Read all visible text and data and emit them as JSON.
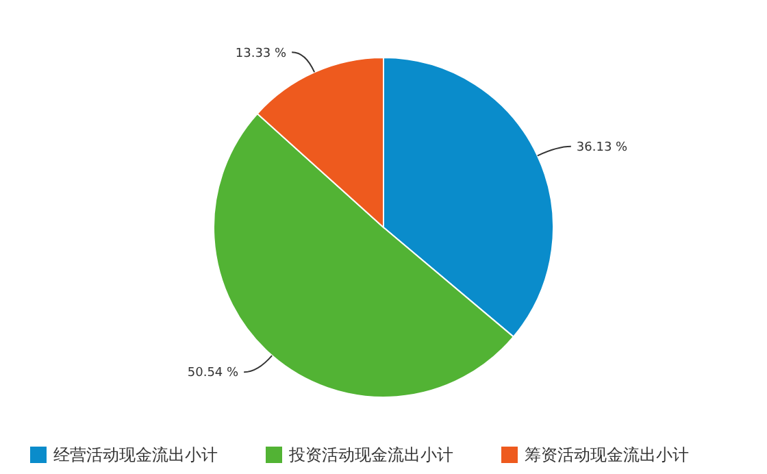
{
  "chart_data": {
    "type": "pie",
    "categories": [
      "经营活动现金流出小计",
      "投资活动现金流出小计",
      "筹资活动现金流出小计"
    ],
    "values": [
      36.13,
      50.54,
      13.33
    ],
    "colors": [
      "#0a8ccb",
      "#52b334",
      "#ee5a1e"
    ],
    "value_labels": [
      "36.13 %",
      "50.54 %",
      "13.33 %"
    ],
    "legend": "bottom"
  }
}
